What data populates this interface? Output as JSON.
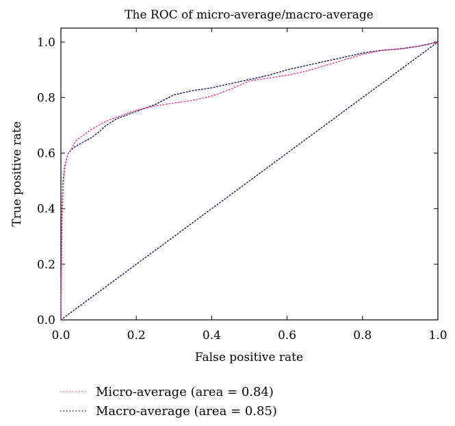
{
  "chart_data": {
    "type": "line",
    "title": "The ROC of micro-average/macro-average",
    "xlabel": "False positive rate",
    "ylabel": "True positive rate",
    "xlim": [
      0,
      1
    ],
    "ylim": [
      0,
      1.05
    ],
    "x_ticks": [
      "0.0",
      "0.2",
      "0.4",
      "0.6",
      "0.8",
      "1.0"
    ],
    "y_ticks": [
      "0.0",
      "0.2",
      "0.4",
      "0.6",
      "0.8",
      "1.0"
    ],
    "grid": false,
    "legend_position": "bottom-left, below plot",
    "series": [
      {
        "name": "Micro-average (area = 0.84)",
        "color": "#e8509a",
        "style": "dotted",
        "x": [
          0,
          0.003,
          0.006,
          0.01,
          0.015,
          0.02,
          0.03,
          0.04,
          0.06,
          0.08,
          0.1,
          0.12,
          0.15,
          0.18,
          0.2,
          0.25,
          0.3,
          0.35,
          0.4,
          0.45,
          0.5,
          0.55,
          0.6,
          0.65,
          0.7,
          0.75,
          0.8,
          0.85,
          0.9,
          0.95,
          1.0
        ],
        "y": [
          0,
          0.35,
          0.48,
          0.54,
          0.58,
          0.6,
          0.62,
          0.645,
          0.665,
          0.685,
          0.7,
          0.715,
          0.73,
          0.745,
          0.755,
          0.77,
          0.78,
          0.79,
          0.805,
          0.83,
          0.86,
          0.87,
          0.88,
          0.895,
          0.915,
          0.935,
          0.955,
          0.97,
          0.975,
          0.985,
          1.0
        ]
      },
      {
        "name": "Macro-average (area = 0.85)",
        "color": "#2a2a5e",
        "style": "dotted",
        "x": [
          0,
          0.003,
          0.006,
          0.01,
          0.015,
          0.02,
          0.03,
          0.04,
          0.06,
          0.08,
          0.1,
          0.12,
          0.15,
          0.18,
          0.2,
          0.25,
          0.3,
          0.35,
          0.4,
          0.45,
          0.5,
          0.55,
          0.6,
          0.65,
          0.7,
          0.75,
          0.8,
          0.85,
          0.9,
          0.95,
          1.0
        ],
        "y": [
          0,
          0.4,
          0.5,
          0.55,
          0.58,
          0.6,
          0.615,
          0.625,
          0.64,
          0.655,
          0.675,
          0.7,
          0.725,
          0.74,
          0.75,
          0.775,
          0.81,
          0.825,
          0.835,
          0.85,
          0.865,
          0.88,
          0.9,
          0.915,
          0.93,
          0.945,
          0.96,
          0.97,
          0.975,
          0.985,
          1.0
        ]
      },
      {
        "name": "",
        "color": "#2a2a5e",
        "style": "dotted",
        "x": [
          0,
          1
        ],
        "y": [
          0,
          1
        ]
      }
    ]
  }
}
